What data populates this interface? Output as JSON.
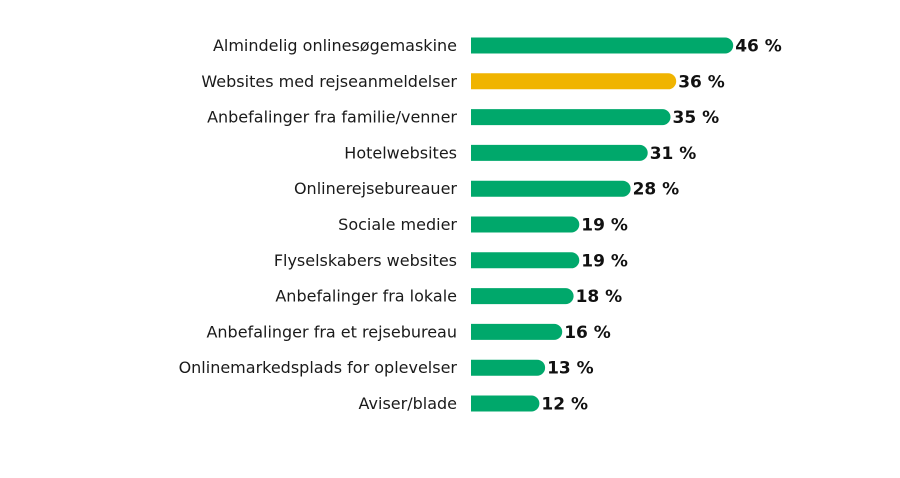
{
  "chart_data": {
    "type": "bar",
    "orientation": "horizontal",
    "categories": [
      "Almindelig onlinesøgemaskine",
      "Websites med rejseanmeldelser",
      "Anbefalinger fra familie/venner",
      "Hotelwebsites",
      "Onlinerejsebureauer",
      "Sociale medier",
      "Flyselskabers websites",
      "Anbefalinger fra lokale",
      "Anbefalinger fra et rejsebureau",
      "Onlinemarkedsplads for oplevelser",
      "Aviser/blade"
    ],
    "values": [
      46,
      36,
      35,
      31,
      28,
      19,
      19,
      18,
      16,
      13,
      12
    ],
    "value_labels": [
      "46 %",
      "36 %",
      "35 %",
      "31 %",
      "28 %",
      "19 %",
      "19 %",
      "18 %",
      "16 %",
      "13 %",
      "12 %"
    ],
    "highlight_index": 1,
    "colors": {
      "bar": "#00a86b",
      "highlight": "#f0b400"
    },
    "grid": false,
    "legend": "none"
  }
}
